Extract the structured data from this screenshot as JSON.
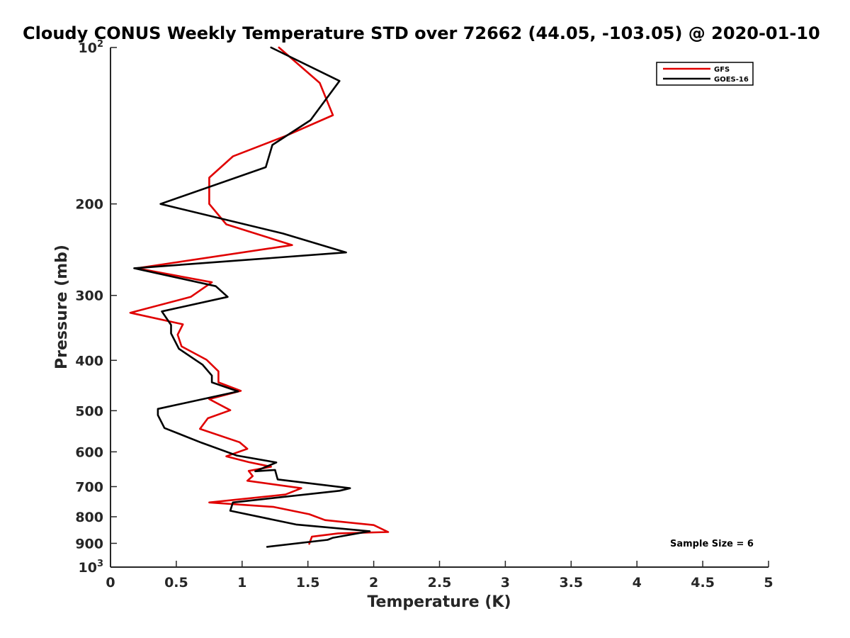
{
  "chart_data": {
    "type": "line",
    "title": "Cloudy CONUS Weekly Temperature STD over 72662 (44.05, -103.05) @ 2020-01-10",
    "xlabel": "Temperature (K)",
    "ylabel": "Pressure (mb)",
    "xlim": [
      0,
      5
    ],
    "ylim": [
      100,
      1000
    ],
    "y_scale": "log",
    "y_reversed": true,
    "grid": false,
    "legend_position": "top-right",
    "x_ticks": [
      0,
      0.5,
      1,
      1.5,
      2,
      2.5,
      3,
      3.5,
      4,
      4.5,
      5
    ],
    "x_tick_labels": [
      "0",
      "0.5",
      "1",
      "1.5",
      "2",
      "2.5",
      "3",
      "3.5",
      "4",
      "4.5",
      "5"
    ],
    "y_ticks": [
      200,
      300,
      400,
      500,
      600,
      700,
      800,
      900
    ],
    "y_tick_labels": [
      "200",
      "300",
      "400",
      "500",
      "600",
      "700",
      "800",
      "900"
    ],
    "y_limit_labels": [
      {
        "value": 100,
        "base": "10",
        "exp": "2"
      },
      {
        "value": 1000,
        "base": "10",
        "exp": "3"
      }
    ],
    "series": [
      {
        "name": "GFS",
        "color": "#e00000",
        "points": [
          [
            1.28,
            100
          ],
          [
            1.59,
            117
          ],
          [
            1.69,
            135
          ],
          [
            1.33,
            148
          ],
          [
            0.93,
            162
          ],
          [
            0.75,
            178
          ],
          [
            0.75,
            200
          ],
          [
            0.88,
            219
          ],
          [
            1.38,
            240
          ],
          [
            0.2,
            266
          ],
          [
            0.77,
            283
          ],
          [
            0.61,
            302
          ],
          [
            0.15,
            324
          ],
          [
            0.55,
            341
          ],
          [
            0.51,
            357
          ],
          [
            0.54,
            376
          ],
          [
            0.73,
            399
          ],
          [
            0.82,
            420
          ],
          [
            0.82,
            441
          ],
          [
            0.99,
            458
          ],
          [
            0.75,
            475
          ],
          [
            0.91,
            499
          ],
          [
            0.74,
            517
          ],
          [
            0.68,
            542
          ],
          [
            0.98,
            575
          ],
          [
            1.04,
            592
          ],
          [
            0.88,
            612
          ],
          [
            1.05,
            628
          ],
          [
            1.22,
            641
          ],
          [
            1.05,
            653
          ],
          [
            1.08,
            668
          ],
          [
            1.04,
            682
          ],
          [
            1.45,
            705
          ],
          [
            1.33,
            725
          ],
          [
            0.75,
            751
          ],
          [
            1.24,
            766
          ],
          [
            1.51,
            791
          ],
          [
            1.63,
            812
          ],
          [
            2.0,
            830
          ],
          [
            2.11,
            856
          ],
          [
            1.73,
            861
          ],
          [
            1.53,
            874
          ],
          [
            1.51,
            902
          ]
        ]
      },
      {
        "name": "GOES-16",
        "color": "#000000",
        "points": [
          [
            1.22,
            100
          ],
          [
            1.74,
            116
          ],
          [
            1.52,
            138
          ],
          [
            1.23,
            154
          ],
          [
            1.18,
            170
          ],
          [
            0.38,
            200
          ],
          [
            1.31,
            228
          ],
          [
            1.79,
            248
          ],
          [
            0.18,
            266
          ],
          [
            0.8,
            288
          ],
          [
            0.89,
            302
          ],
          [
            0.39,
            322
          ],
          [
            0.46,
            342
          ],
          [
            0.46,
            355
          ],
          [
            0.52,
            380
          ],
          [
            0.7,
            408
          ],
          [
            0.77,
            428
          ],
          [
            0.77,
            441
          ],
          [
            0.97,
            459
          ],
          [
            0.36,
            496
          ],
          [
            0.36,
            510
          ],
          [
            0.41,
            540
          ],
          [
            0.69,
            576
          ],
          [
            0.96,
            610
          ],
          [
            1.26,
            629
          ],
          [
            1.1,
            654
          ],
          [
            1.25,
            650
          ],
          [
            1.27,
            678
          ],
          [
            1.82,
            705
          ],
          [
            1.74,
            713
          ],
          [
            0.93,
            751
          ],
          [
            0.91,
            779
          ],
          [
            1.41,
            828
          ],
          [
            1.97,
            853
          ],
          [
            1.69,
            878
          ],
          [
            1.65,
            886
          ],
          [
            1.19,
            914
          ]
        ]
      }
    ],
    "annotations": [
      "Sample Size = 6"
    ]
  }
}
